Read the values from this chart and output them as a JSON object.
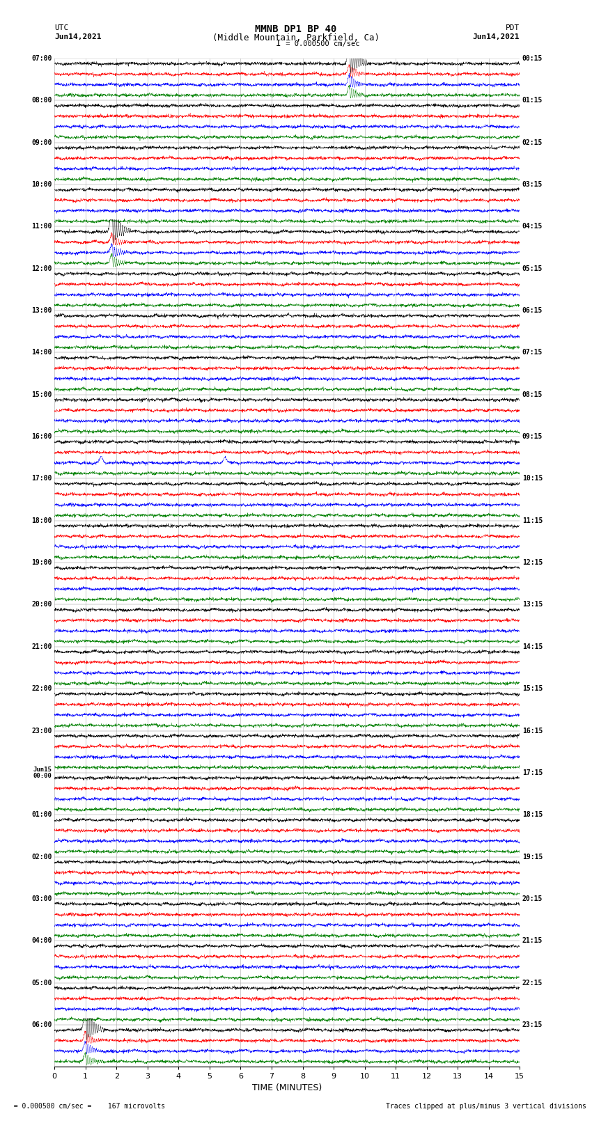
{
  "title_line1": "MMNB DP1 BP 40",
  "title_line2": "(Middle Mountain, Parkfield, Ca)",
  "scale_label": "I = 0.000500 cm/sec",
  "left_label_top": "UTC",
  "left_label_date": "Jun14,2021",
  "right_label_top": "PDT",
  "right_label_date": "Jun14,2021",
  "xlabel": "TIME (MINUTES)",
  "footer_left": "  = 0.000500 cm/sec =    167 microvolts",
  "footer_right": "Traces clipped at plus/minus 3 vertical divisions",
  "xlim": [
    0,
    15
  ],
  "xticks": [
    0,
    1,
    2,
    3,
    4,
    5,
    6,
    7,
    8,
    9,
    10,
    11,
    12,
    13,
    14,
    15
  ],
  "colors_order": [
    "black",
    "red",
    "blue",
    "green"
  ],
  "bg_color": "#ffffff",
  "utc_labels": [
    "07:00",
    "08:00",
    "09:00",
    "10:00",
    "11:00",
    "12:00",
    "13:00",
    "14:00",
    "15:00",
    "16:00",
    "17:00",
    "18:00",
    "19:00",
    "20:00",
    "21:00",
    "22:00",
    "23:00",
    "Jun15\n00:00",
    "01:00",
    "02:00",
    "03:00",
    "04:00",
    "05:00",
    "06:00"
  ],
  "pdt_labels": [
    "00:15",
    "01:15",
    "02:15",
    "03:15",
    "04:15",
    "05:15",
    "06:15",
    "07:15",
    "08:15",
    "09:15",
    "10:15",
    "11:15",
    "12:15",
    "13:15",
    "14:15",
    "15:15",
    "16:15",
    "17:15",
    "18:15",
    "19:15",
    "20:15",
    "21:15",
    "22:15",
    "23:15"
  ],
  "spike_events": [
    {
      "hour_idx": 0,
      "color_idx": 0,
      "minute": 9.5,
      "amp": 3.0
    },
    {
      "hour_idx": 4,
      "color_idx": 0,
      "minute": 1.85,
      "amp": 3.0
    },
    {
      "hour_idx": 23,
      "color_idx": 0,
      "minute": 1.0,
      "amp": 3.0
    }
  ],
  "blue_bumps": [
    {
      "hour_idx": 9,
      "color_idx": 2,
      "minute": 1.5,
      "amp": 0.6
    },
    {
      "hour_idx": 9,
      "color_idx": 2,
      "minute": 5.5,
      "amp": 0.5
    }
  ]
}
